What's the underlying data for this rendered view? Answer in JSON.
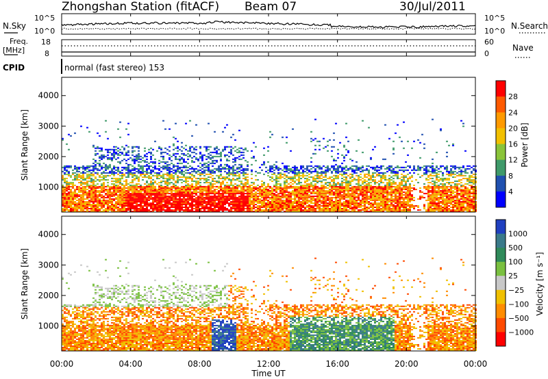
{
  "header": {
    "station_title": "Zhongshan Station (fitACF)",
    "beam": "Beam 07",
    "date": "30/Jul/2011"
  },
  "top_panels": {
    "nsky_label": "N.Sky",
    "nsearch_label": "N.Search",
    "nsky_tick_high": "10^5",
    "nsky_tick_low": "10^0",
    "nsearch_tick_high": "10^5",
    "nsearch_tick_low": "10^0",
    "freq_label": "Freq.",
    "freq_unit": "[MHz]",
    "freq_tick_high": "18",
    "freq_tick_low": "8",
    "nave_label": "Nave",
    "nave_tick_high": "60",
    "nave_tick_low": "0",
    "cpid_label": "CPID",
    "cpid_text": "normal (fast stereo) 153"
  },
  "chart_data": [
    {
      "type": "heatmap",
      "name": "power",
      "ylabel": "Slant Range [km]",
      "xlabel": "",
      "ylim": [
        180,
        4600
      ],
      "yticks": [
        "1000",
        "2000",
        "3000",
        "4000"
      ],
      "colorbar_label": "Power [dB]",
      "colorbar_ticks": [
        "28",
        "24",
        "20",
        "16",
        "12",
        "8",
        "4"
      ],
      "colorbar_colors": [
        "#ff0000",
        "#ff5a00",
        "#ff9a00",
        "#f2c000",
        "#8ac43a",
        "#3f9a6a",
        "#2050b0",
        "#0000ff"
      ]
    },
    {
      "type": "heatmap",
      "name": "velocity",
      "ylabel": "Slant Range [km]",
      "xlabel": "Time UT",
      "ylim": [
        180,
        4600
      ],
      "yticks": [
        "1000",
        "2000",
        "3000",
        "4000"
      ],
      "xticks": [
        "00:00",
        "04:00",
        "08:00",
        "12:00",
        "16:00",
        "20:00",
        "00:00"
      ],
      "colorbar_label": "Velocity [m s⁻¹]",
      "colorbar_ticks": [
        "1000",
        "500",
        "100",
        "25",
        "−25",
        "−100",
        "−500",
        "−1000"
      ],
      "colorbar_colors": [
        "#2040c0",
        "#3a7a8a",
        "#2f8a5a",
        "#7ac040",
        "#c8c8c8",
        "#f0c000",
        "#ff8c00",
        "#ff4a00",
        "#ff0000"
      ]
    }
  ]
}
